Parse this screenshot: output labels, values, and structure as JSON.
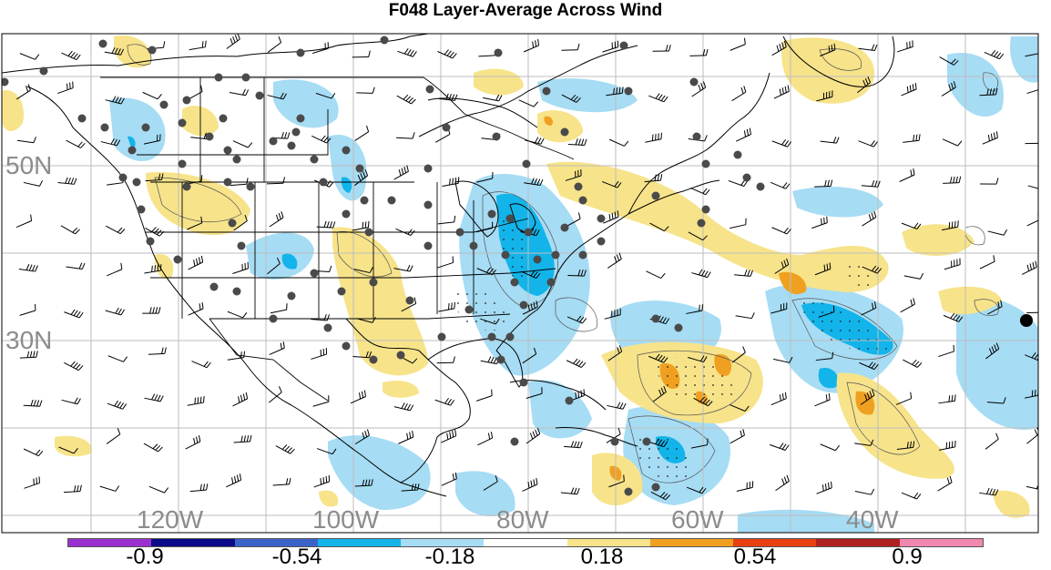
{
  "title": "F048 Layer-Average Across Wind",
  "latitude_labels": [
    "50N",
    "30N"
  ],
  "longitude_labels": [
    "120W",
    "100W",
    "80W",
    "60W",
    "40W"
  ],
  "colorbar": {
    "colors": [
      "#9b30d0",
      "#0a0a8a",
      "#3a63c8",
      "#12b4ea",
      "#a6dcf4",
      "#ffffff",
      "#f7e38a",
      "#f0a020",
      "#e84010",
      "#b02020",
      "#f088b0"
    ],
    "tick_labels": [
      "-0.9",
      "-0.54",
      "-0.18",
      "0.18",
      "0.54",
      "0.9"
    ]
  }
}
